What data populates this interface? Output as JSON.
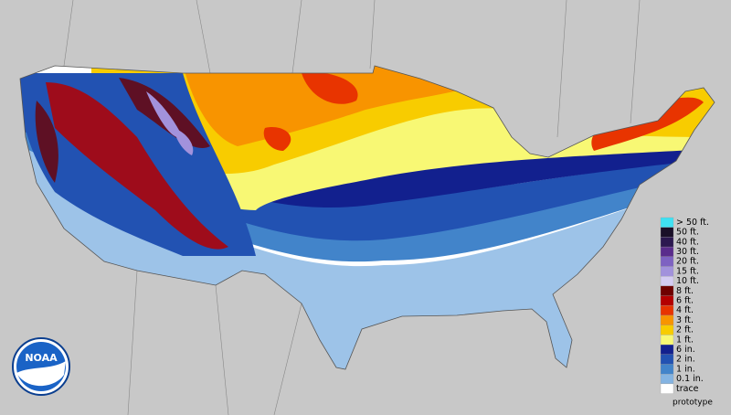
{
  "logo": "NOAA",
  "footnote": "prototype",
  "legend": [
    {
      "label": "> 50 ft.",
      "color": "#3fe0f2"
    },
    {
      "label": "50 ft.",
      "color": "#1a1028"
    },
    {
      "label": "40 ft.",
      "color": "#2c1850"
    },
    {
      "label": "30 ft.",
      "color": "#5a2c8c"
    },
    {
      "label": "20 ft.",
      "color": "#7e62c2"
    },
    {
      "label": "15 ft.",
      "color": "#a292dc"
    },
    {
      "label": "10 ft.",
      "color": "#d4ccf2"
    },
    {
      "label": "8 ft.",
      "color": "#6e0000"
    },
    {
      "label": "6 ft.",
      "color": "#b40000"
    },
    {
      "label": "4 ft.",
      "color": "#e83400"
    },
    {
      "label": "3 ft.",
      "color": "#f89400"
    },
    {
      "label": "2 ft.",
      "color": "#f8cc00"
    },
    {
      "label": "1 ft.",
      "color": "#f8f874"
    },
    {
      "label": "6 in.",
      "color": "#12208e"
    },
    {
      "label": "2 in.",
      "color": "#2252b2"
    },
    {
      "label": "1 in.",
      "color": "#4284ca"
    },
    {
      "label": "0.1 in.",
      "color": "#84b4e2"
    },
    {
      "label": "trace",
      "color": "#ffffff"
    }
  ]
}
